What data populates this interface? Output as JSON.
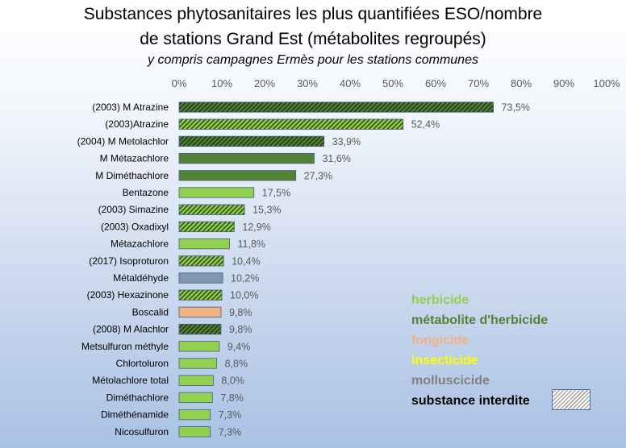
{
  "title_line1": "Substances phytosanitaires les plus quantifiées ESO/nombre",
  "title_line2": "de stations Grand Est (métabolites regroupés)",
  "subtitle": "y compris campagnes Ermès pour les stations communes",
  "colors": {
    "herbicide": "#92d050",
    "metabolite": "#548235",
    "fongicide": "#f4b183",
    "insecticide": "#ffff00",
    "molluscicide": "#8497b0"
  },
  "legend": [
    {
      "label": "herbicide",
      "color": "#92d050"
    },
    {
      "label": "métabolite d'herbicide",
      "color": "#548235"
    },
    {
      "label": "fongicide",
      "color": "#f4b183"
    },
    {
      "label": "insecticide",
      "color": "#ffff00"
    },
    {
      "label": "molluscicide",
      "color": "#808080"
    },
    {
      "label": "substance interdite",
      "color": "#000000"
    }
  ],
  "chart_data": {
    "type": "bar",
    "orientation": "horizontal",
    "xlim": [
      0,
      100
    ],
    "x_ticks": [
      "0%",
      "10%",
      "20%",
      "30%",
      "40%",
      "50%",
      "60%",
      "70%",
      "80%",
      "90%",
      "100%"
    ],
    "categories": [
      "(2003) M Atrazine",
      "(2003)Atrazine",
      "(2004) M Metolachlor",
      "M Métazachlore",
      "M Diméthachlore",
      "Bentazone",
      "(2003) Simazine",
      "(2003) Oxadixyl",
      "Métazachlore",
      "(2017) Isoproturon",
      "Métaldéhyde",
      "(2003) Hexazinone",
      "Boscalid",
      "(2008) M Alachlor",
      "Metsulfuron méthyle",
      "Chlortoluron",
      "Métolachlore total",
      "Diméthachlore",
      "Diméthénamide",
      "Nicosulfuron"
    ],
    "values": [
      73.5,
      52.4,
      33.9,
      31.6,
      27.3,
      17.5,
      15.3,
      12.9,
      11.8,
      10.4,
      10.2,
      10.0,
      9.8,
      9.8,
      9.4,
      8.8,
      8.0,
      7.8,
      7.3,
      7.3
    ],
    "value_labels": [
      "73,5%",
      "52,4%",
      "33,9%",
      "31,6%",
      "27,3%",
      "17,5%",
      "15,3%",
      "12,9%",
      "11,8%",
      "10,4%",
      "10,2%",
      "10,0%",
      "9,8%",
      "9,8%",
      "9,4%",
      "8,8%",
      "8,0%",
      "7,8%",
      "7,3%",
      "7,3%"
    ],
    "types": [
      "metabolite",
      "herbicide",
      "metabolite",
      "metabolite",
      "metabolite",
      "herbicide",
      "herbicide",
      "herbicide",
      "herbicide",
      "herbicide",
      "molluscicide",
      "herbicide",
      "fongicide",
      "metabolite",
      "herbicide",
      "herbicide",
      "herbicide",
      "herbicide",
      "herbicide",
      "herbicide"
    ],
    "banned": [
      true,
      true,
      true,
      false,
      false,
      false,
      true,
      true,
      false,
      true,
      false,
      true,
      false,
      true,
      false,
      false,
      false,
      false,
      false,
      false
    ]
  }
}
